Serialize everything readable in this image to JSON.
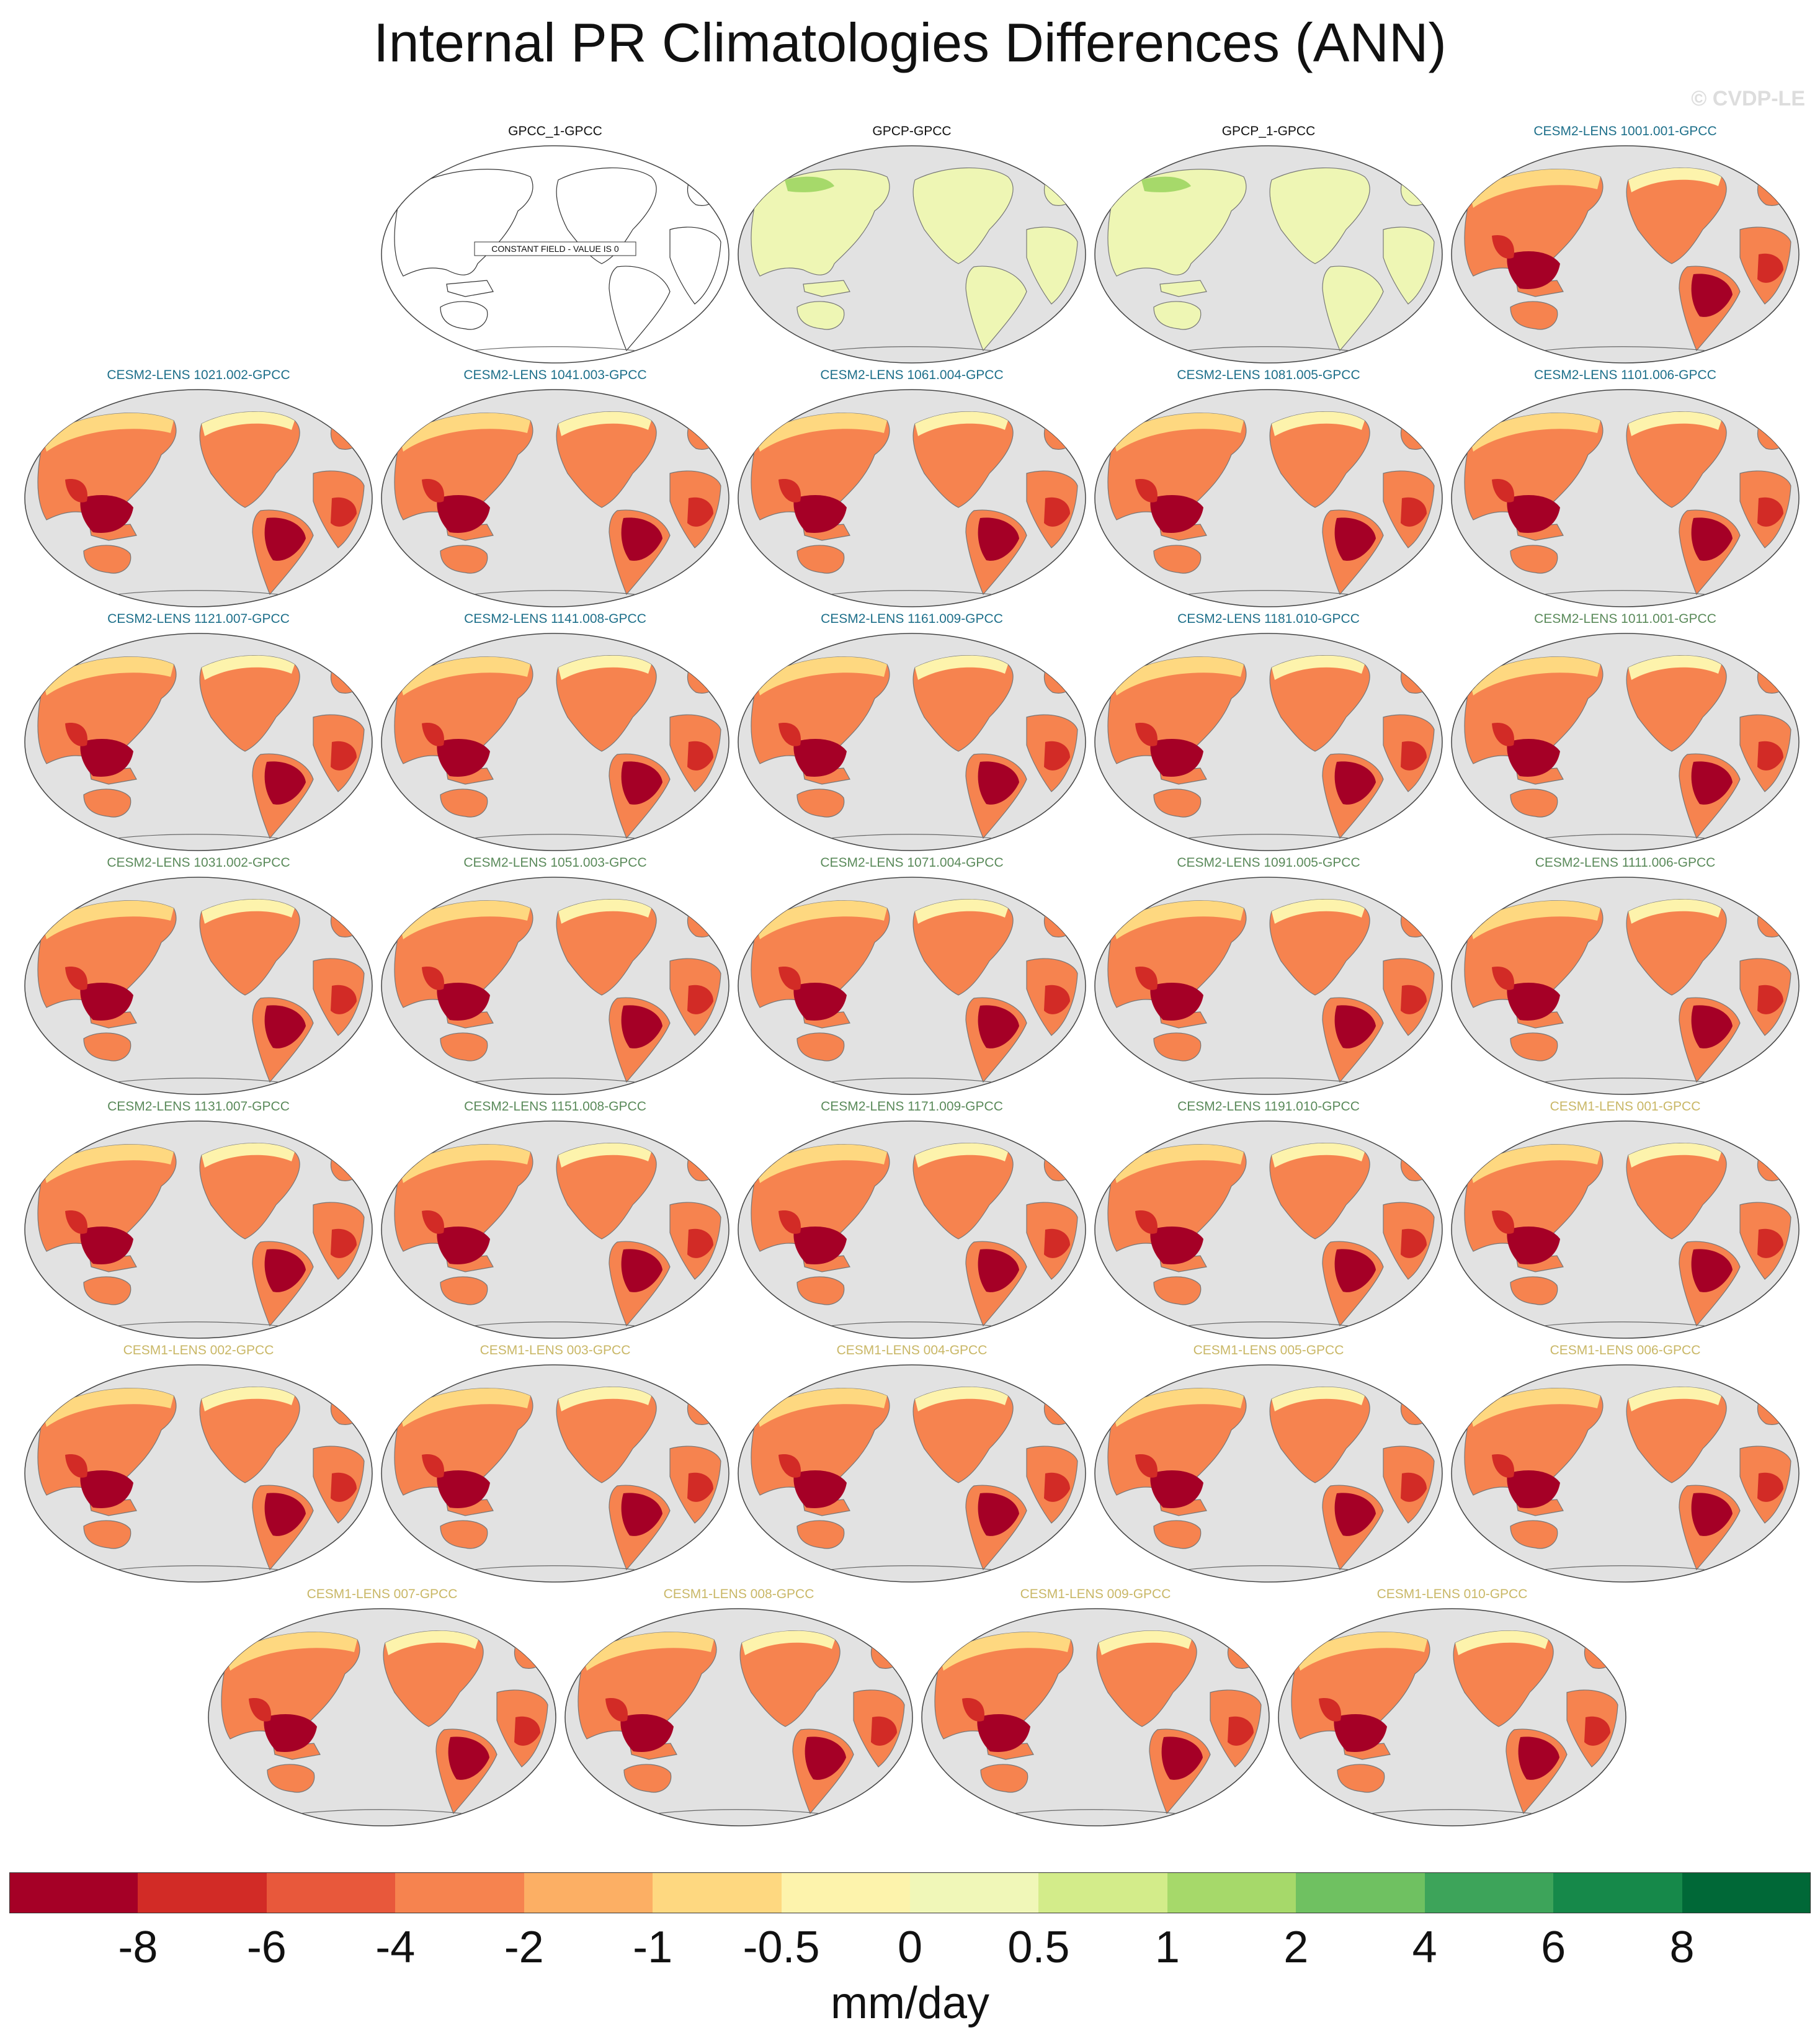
{
  "title": "Internal PR Climatologies Differences (ANN)",
  "watermark": "© CVDP-LE",
  "constant_field_label": "CONSTANT FIELD - VALUE IS 0",
  "group_colors": {
    "obs": "#111111",
    "cesm2_a": "#1d6f8a",
    "cesm2_b": "#5a8a5a",
    "cesm1": "#c9b766"
  },
  "panels": [
    {
      "label": "GPCC_1-GPCC",
      "group": "obs",
      "field": "constant"
    },
    {
      "label": "GPCP-GPCC",
      "group": "obs",
      "field": "small_positive"
    },
    {
      "label": "GPCP_1-GPCC",
      "group": "obs",
      "field": "small_positive"
    },
    {
      "label": "CESM2-LENS 1001.001-GPCC",
      "group": "cesm2_a",
      "field": "negative"
    },
    {
      "label": "CESM2-LENS 1021.002-GPCC",
      "group": "cesm2_a",
      "field": "negative"
    },
    {
      "label": "CESM2-LENS 1041.003-GPCC",
      "group": "cesm2_a",
      "field": "negative"
    },
    {
      "label": "CESM2-LENS 1061.004-GPCC",
      "group": "cesm2_a",
      "field": "negative"
    },
    {
      "label": "CESM2-LENS 1081.005-GPCC",
      "group": "cesm2_a",
      "field": "negative"
    },
    {
      "label": "CESM2-LENS 1101.006-GPCC",
      "group": "cesm2_a",
      "field": "negative"
    },
    {
      "label": "CESM2-LENS 1121.007-GPCC",
      "group": "cesm2_a",
      "field": "negative"
    },
    {
      "label": "CESM2-LENS 1141.008-GPCC",
      "group": "cesm2_a",
      "field": "negative"
    },
    {
      "label": "CESM2-LENS 1161.009-GPCC",
      "group": "cesm2_a",
      "field": "negative"
    },
    {
      "label": "CESM2-LENS 1181.010-GPCC",
      "group": "cesm2_a",
      "field": "negative"
    },
    {
      "label": "CESM2-LENS 1011.001-GPCC",
      "group": "cesm2_b",
      "field": "negative"
    },
    {
      "label": "CESM2-LENS 1031.002-GPCC",
      "group": "cesm2_b",
      "field": "negative"
    },
    {
      "label": "CESM2-LENS 1051.003-GPCC",
      "group": "cesm2_b",
      "field": "negative"
    },
    {
      "label": "CESM2-LENS 1071.004-GPCC",
      "group": "cesm2_b",
      "field": "negative"
    },
    {
      "label": "CESM2-LENS 1091.005-GPCC",
      "group": "cesm2_b",
      "field": "negative"
    },
    {
      "label": "CESM2-LENS 1111.006-GPCC",
      "group": "cesm2_b",
      "field": "negative"
    },
    {
      "label": "CESM2-LENS 1131.007-GPCC",
      "group": "cesm2_b",
      "field": "negative"
    },
    {
      "label": "CESM2-LENS 1151.008-GPCC",
      "group": "cesm2_b",
      "field": "negative"
    },
    {
      "label": "CESM2-LENS 1171.009-GPCC",
      "group": "cesm2_b",
      "field": "negative"
    },
    {
      "label": "CESM2-LENS 1191.010-GPCC",
      "group": "cesm2_b",
      "field": "negative"
    },
    {
      "label": "CESM1-LENS 001-GPCC",
      "group": "cesm1",
      "field": "negative"
    },
    {
      "label": "CESM1-LENS 002-GPCC",
      "group": "cesm1",
      "field": "negative"
    },
    {
      "label": "CESM1-LENS 003-GPCC",
      "group": "cesm1",
      "field": "negative"
    },
    {
      "label": "CESM1-LENS 004-GPCC",
      "group": "cesm1",
      "field": "negative"
    },
    {
      "label": "CESM1-LENS 005-GPCC",
      "group": "cesm1",
      "field": "negative"
    },
    {
      "label": "CESM1-LENS 006-GPCC",
      "group": "cesm1",
      "field": "negative"
    },
    {
      "label": "CESM1-LENS 007-GPCC",
      "group": "cesm1",
      "field": "negative"
    },
    {
      "label": "CESM1-LENS 008-GPCC",
      "group": "cesm1",
      "field": "negative"
    },
    {
      "label": "CESM1-LENS 009-GPCC",
      "group": "cesm1",
      "field": "negative"
    },
    {
      "label": "CESM1-LENS 010-GPCC",
      "group": "cesm1",
      "field": "negative"
    }
  ],
  "colorbar": {
    "colors": [
      "#a50026",
      "#d22b26",
      "#e8583b",
      "#f6834f",
      "#fcaf64",
      "#fed880",
      "#fdf3ac",
      "#f0f7b8",
      "#d3ec8a",
      "#a6d96a",
      "#6fc161",
      "#3da45a",
      "#16894a",
      "#006837"
    ],
    "ticks": [
      "-8",
      "-6",
      "-4",
      "-2",
      "-1",
      "-0.5",
      "0",
      "0.5",
      "1",
      "2",
      "4",
      "6",
      "8"
    ],
    "units": "mm/day"
  }
}
